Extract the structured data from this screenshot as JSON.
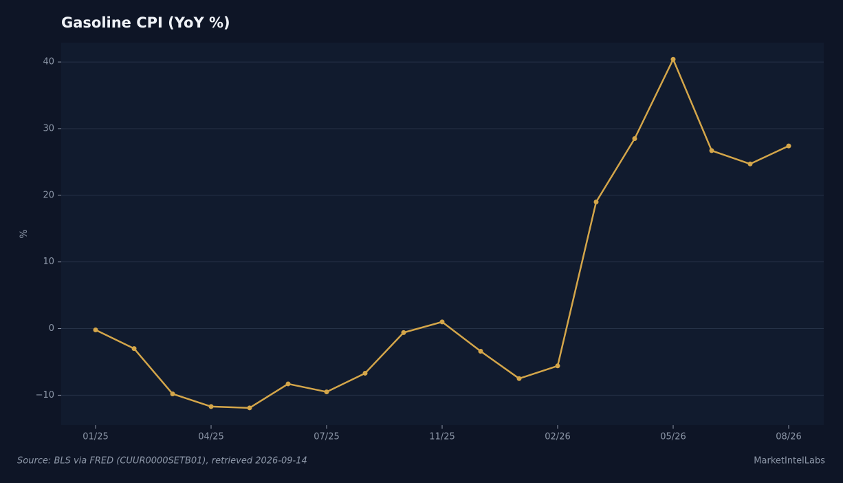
{
  "chart_data": {
    "type": "line",
    "title": "Gasoline CPI (YoY %)",
    "y_label": "%",
    "source": "Source: BLS via FRED (CUUR0000SETB01), retrieved 2026-09-14",
    "brand": "MarketIntelLabs",
    "categories": [
      "01/25",
      null,
      null,
      "04/25",
      null,
      null,
      "07/25",
      null,
      null,
      "11/25",
      null,
      null,
      "02/26",
      null,
      null,
      "05/26",
      null,
      null,
      "08/26"
    ],
    "series": [
      {
        "name": "Gasoline CPI YoY",
        "color": "#d4a64a",
        "values": [
          -0.2,
          -3.0,
          -9.8,
          -11.7,
          -11.9,
          -8.3,
          -9.5,
          -6.7,
          -0.6,
          1.0,
          -3.4,
          -7.5,
          -5.6,
          19.0,
          28.5,
          40.4,
          26.7,
          24.7,
          27.4
        ]
      }
    ],
    "ylim": [
      -14.5,
      42.9
    ],
    "yticks": [
      {
        "value": -10,
        "label": "−10"
      },
      0,
      10,
      20,
      30,
      40
    ],
    "grid": true
  }
}
